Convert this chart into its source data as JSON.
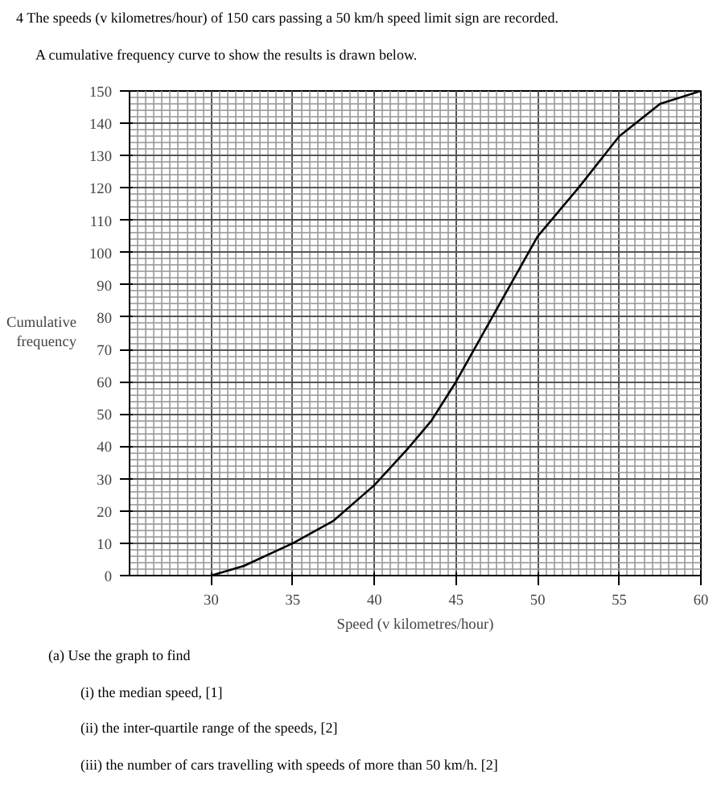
{
  "chart_data": {
    "type": "line",
    "title": "4   The speeds (v kilometres/hour) of 150 cars passing a 50 km/h speed limit sign are recorded.",
    "subtitle": "A cumulative frequency curve to show the results is drawn below.",
    "xlabel": "Speed (v kilometres/hour)",
    "ylabel": "Cumulative frequency",
    "x": [
      30,
      32,
      35,
      37.5,
      40,
      42,
      43.5,
      45,
      47,
      49,
      50,
      52.5,
      55,
      57.5,
      60
    ],
    "values": [
      0,
      3,
      10,
      17,
      28,
      39,
      48,
      60,
      78,
      96,
      105,
      120,
      136,
      146,
      150
    ],
    "color": "#000000",
    "marker": "none",
    "line_style": "solid",
    "grid": true,
    "xlim": [
      25,
      60
    ],
    "xticks": [
      30,
      35,
      40,
      45,
      50,
      55,
      60
    ],
    "ylim": [
      0,
      150
    ],
    "yticks": [
      0,
      10,
      20,
      30,
      40,
      50,
      60,
      70,
      80,
      90,
      100,
      110,
      120,
      130,
      140,
      150
    ],
    "annotations": [
      "(a)  Use the graph to find",
      "(i)   the median speed,   [1]",
      "(ii)   the inter-quartile range of the speeds,   [2]",
      "(iii)   the number of cars travelling with speeds of more than 50 km/h.   [2]"
    ]
  }
}
